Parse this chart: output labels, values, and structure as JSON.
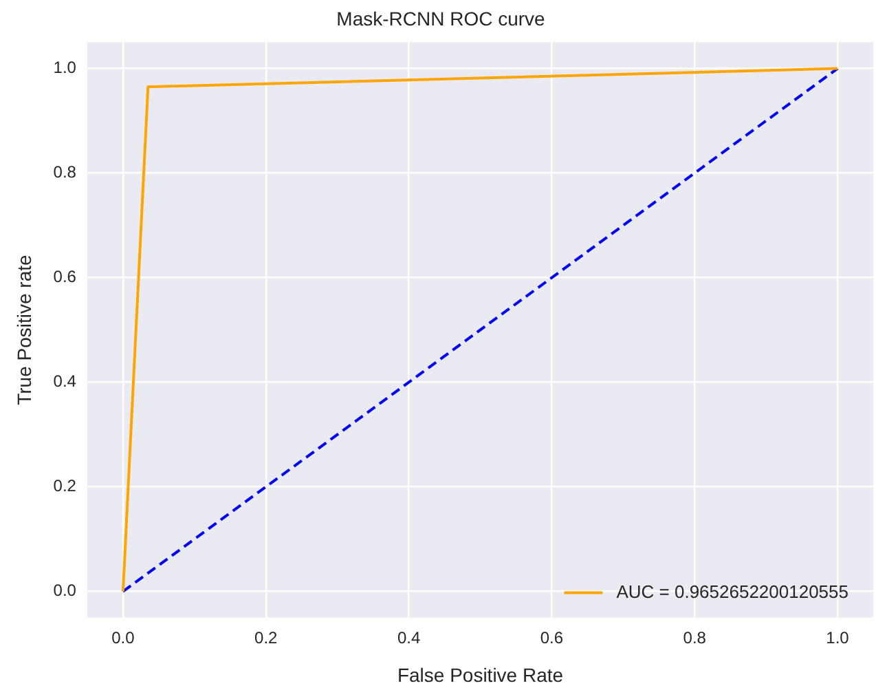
{
  "chart_data": {
    "type": "line",
    "title": "Mask-RCNN ROC curve",
    "xlabel": "False Positive Rate",
    "ylabel": "True Positive rate",
    "series": [
      {
        "name": "AUC = 0.9652652200120555",
        "color": "#ffa500",
        "x": [
          0,
          0.035,
          1
        ],
        "values": [
          0,
          0.965,
          1
        ],
        "line_style": "solid"
      },
      {
        "color": "#0000ff",
        "x": [
          0,
          1
        ],
        "values": [
          0,
          1
        ],
        "line_style": "dashed"
      }
    ],
    "xlim": [
      -0.05,
      1.05
    ],
    "ylim": [
      -0.05,
      1.05
    ],
    "xticks": [
      {
        "value": 0,
        "label": "0.0"
      },
      0.2,
      0.4,
      0.6,
      0.8,
      {
        "value": 1,
        "label": "1.0"
      }
    ],
    "yticks": [
      {
        "value": 0,
        "label": "0.0"
      },
      0.2,
      0.4,
      0.6,
      0.8,
      {
        "value": 1,
        "label": "1.0"
      }
    ],
    "grid": true,
    "legend": "bottom right",
    "marker": "none"
  }
}
